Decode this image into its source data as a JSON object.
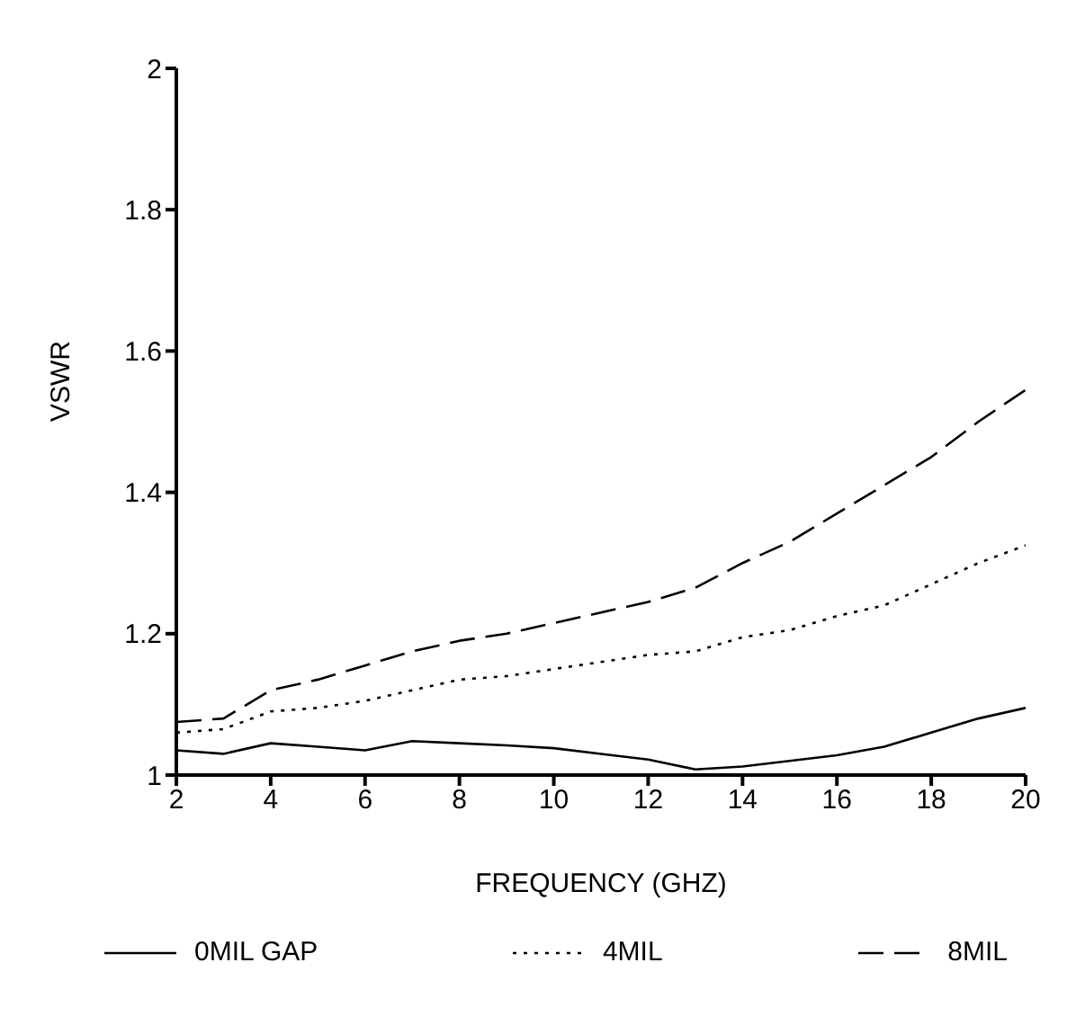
{
  "chart_data": {
    "type": "line",
    "xlabel": "FREQUENCY (GHZ)",
    "ylabel": "VSWR",
    "x": [
      2,
      3,
      4,
      5,
      6,
      7,
      8,
      9,
      10,
      11,
      12,
      13,
      14,
      15,
      16,
      17,
      18,
      19,
      20
    ],
    "series": [
      {
        "name": "0MIL GAP",
        "color": "#000000",
        "line_style": "solid",
        "values": [
          1.035,
          1.03,
          1.045,
          1.04,
          1.035,
          1.048,
          1.045,
          1.042,
          1.038,
          1.03,
          1.022,
          1.008,
          1.012,
          1.02,
          1.028,
          1.04,
          1.06,
          1.08,
          1.095
        ]
      },
      {
        "name": "4MIL",
        "color": "#000000",
        "line_style": "dotted",
        "values": [
          1.06,
          1.065,
          1.09,
          1.095,
          1.105,
          1.12,
          1.135,
          1.14,
          1.15,
          1.16,
          1.17,
          1.175,
          1.195,
          1.205,
          1.225,
          1.24,
          1.27,
          1.3,
          1.325
        ]
      },
      {
        "name": "8MIL",
        "color": "#000000",
        "line_style": "dashed",
        "values": [
          1.075,
          1.08,
          1.12,
          1.135,
          1.155,
          1.175,
          1.19,
          1.2,
          1.215,
          1.23,
          1.245,
          1.265,
          1.3,
          1.33,
          1.37,
          1.41,
          1.45,
          1.5,
          1.545
        ]
      }
    ],
    "xlim": [
      2,
      20
    ],
    "xticks": [
      2,
      4,
      6,
      8,
      10,
      12,
      14,
      16,
      18,
      20
    ],
    "ylim": [
      1,
      2
    ],
    "yticks": [
      1,
      1.2,
      1.4,
      1.6,
      1.8,
      2
    ],
    "grid": false,
    "legend": "bottom",
    "marker": "none"
  }
}
